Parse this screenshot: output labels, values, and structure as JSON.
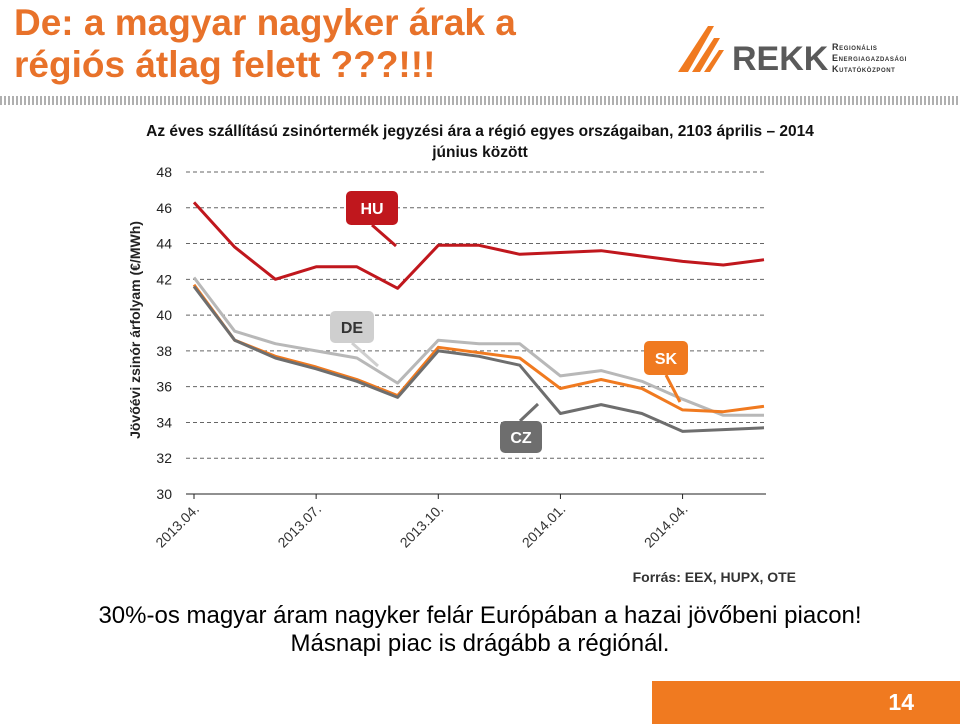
{
  "slide": {
    "title_line1": "De: a magyar nagyker árak a",
    "title_line2": "régiós átlag felett ???!!!",
    "chart_title_line1": "Az éves szállítású zsinórtermék jegyzési ára a régió egyes országaiban, 2103 április – 2014",
    "chart_title_line2": "június között",
    "bottom_line1": "30%-os magyar áram nagyker felár Európában a hazai jövőbeni piacon!",
    "bottom_line2": "Másnapi piac is drágább a régiónál.",
    "page_number": "14"
  },
  "logo": {
    "name": "REKK",
    "line1": "Regionális",
    "line2": "Energiagazdasági",
    "line3": "Kutatóközpont"
  },
  "colors": {
    "accent": "#e8722a",
    "HU": "#c0171d",
    "DE": "#b8b8b8",
    "SK": "#f07a20",
    "CZ": "#6e6e6e"
  },
  "chart_data": {
    "type": "line",
    "ylabel": "Jövőévi zsinór árfolyam (€/MWh)",
    "ylim": [
      30,
      48
    ],
    "yticks": [
      30,
      32,
      34,
      36,
      38,
      40,
      42,
      44,
      46,
      48
    ],
    "xticks": [
      "2013.04.",
      "2013.07.",
      "2013.10.",
      "2014.01.",
      "2014.04."
    ],
    "grid": "horizontal dashed",
    "source": "Forrás: EEX, HUPX, OTE",
    "x": [
      "2013-04",
      "2013-05",
      "2013-06",
      "2013-07",
      "2013-08",
      "2013-09",
      "2013-10",
      "2013-11",
      "2013-12",
      "2014-01",
      "2014-02",
      "2014-03",
      "2014-04",
      "2014-05",
      "2014-06"
    ],
    "series": [
      {
        "name": "HU",
        "color": "#c0171d",
        "values": [
          46.3,
          43.8,
          42.0,
          42.7,
          42.7,
          41.5,
          43.9,
          43.9,
          43.4,
          43.5,
          43.6,
          43.3,
          43.0,
          42.8,
          43.1
        ]
      },
      {
        "name": "DE",
        "color": "#b8b8b8",
        "values": [
          42.1,
          39.1,
          38.4,
          38.0,
          37.6,
          36.2,
          38.6,
          38.4,
          38.4,
          36.6,
          36.9,
          36.3,
          35.3,
          34.4,
          34.4
        ]
      },
      {
        "name": "SK",
        "color": "#f07a20",
        "values": [
          41.7,
          38.6,
          37.7,
          37.1,
          36.4,
          35.5,
          38.2,
          37.9,
          37.6,
          35.9,
          36.4,
          35.9,
          34.7,
          34.6,
          34.9
        ]
      },
      {
        "name": "CZ",
        "color": "#6e6e6e",
        "values": [
          41.6,
          38.6,
          37.6,
          37.0,
          36.3,
          35.4,
          38.0,
          37.7,
          37.2,
          34.5,
          35.0,
          34.5,
          33.5,
          33.6,
          33.7
        ]
      }
    ],
    "annotations": [
      "HU",
      "DE",
      "SK",
      "CZ"
    ]
  }
}
